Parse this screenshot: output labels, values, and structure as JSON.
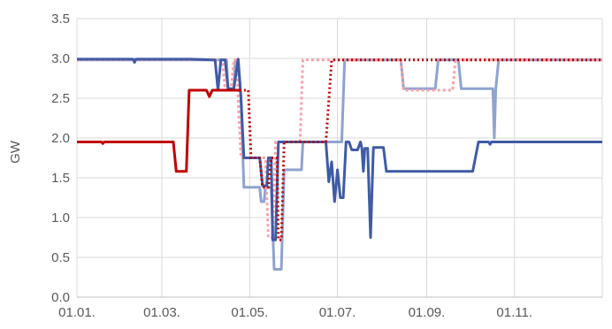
{
  "chart_data": {
    "type": "line",
    "ylabel": "GW",
    "ylim": [
      0,
      3.5
    ],
    "yticks": [
      "0.0",
      "0.5",
      "1.0",
      "1.5",
      "2.0",
      "2.5",
      "3.0",
      "3.5"
    ],
    "xlim": [
      1,
      366
    ],
    "xticks": [
      {
        "day": 1,
        "label": "01.01."
      },
      {
        "day": 60,
        "label": "01.03."
      },
      {
        "day": 121,
        "label": "01.05."
      },
      {
        "day": 182,
        "label": "01.07."
      },
      {
        "day": 244,
        "label": "01.09."
      },
      {
        "day": 305,
        "label": "01.11."
      }
    ],
    "grid": true,
    "series": [
      {
        "color": "#8FA3D0",
        "dash": "",
        "width": 3,
        "points": [
          [
            1,
            2.98
          ],
          [
            70,
            2.98
          ],
          [
            105,
            2.98
          ],
          [
            106,
            2.6
          ],
          [
            110,
            2.6
          ],
          [
            111,
            2.98
          ],
          [
            113,
            2.98
          ],
          [
            115,
            2.5
          ],
          [
            117,
            1.38
          ],
          [
            128,
            1.38
          ],
          [
            129,
            1.2
          ],
          [
            131,
            1.2
          ],
          [
            132,
            1.38
          ],
          [
            136,
            1.38
          ],
          [
            138,
            0.35
          ],
          [
            143,
            0.35
          ],
          [
            145,
            1.6
          ],
          [
            157,
            1.6
          ],
          [
            158,
            1.95
          ],
          [
            185,
            1.95
          ],
          [
            187,
            2.98
          ],
          [
            226,
            2.98
          ],
          [
            228,
            2.62
          ],
          [
            250,
            2.62
          ],
          [
            252,
            2.98
          ],
          [
            266,
            2.98
          ],
          [
            268,
            2.62
          ],
          [
            290,
            2.62
          ],
          [
            291,
            2.0
          ],
          [
            292,
            2.62
          ],
          [
            294,
            2.98
          ],
          [
            366,
            2.98
          ]
        ]
      },
      {
        "color": "#FAA0A8",
        "dash": "3 3",
        "width": 3,
        "points": [
          [
            1,
            2.98
          ],
          [
            102,
            2.98
          ],
          [
            104,
            2.6
          ],
          [
            108,
            2.6
          ],
          [
            110,
            2.98
          ],
          [
            112,
            2.98
          ],
          [
            113,
            2.5
          ],
          [
            115,
            1.75
          ],
          [
            132,
            1.75
          ],
          [
            134,
            0.75
          ],
          [
            137,
            0.75
          ],
          [
            139,
            1.95
          ],
          [
            156,
            1.95
          ],
          [
            158,
            2.98
          ],
          [
            226,
            2.98
          ],
          [
            228,
            2.6
          ],
          [
            262,
            2.6
          ],
          [
            264,
            2.98
          ],
          [
            366,
            2.98
          ]
        ]
      },
      {
        "color": "#3F5BA6",
        "dash": "",
        "width": 3,
        "points": [
          [
            1,
            2.99
          ],
          [
            40,
            2.99
          ],
          [
            41,
            2.95
          ],
          [
            42,
            2.99
          ],
          [
            80,
            2.99
          ],
          [
            95,
            2.98
          ],
          [
            97,
            2.98
          ],
          [
            99,
            2.6
          ],
          [
            101,
            2.98
          ],
          [
            104,
            2.98
          ],
          [
            106,
            2.62
          ],
          [
            110,
            2.62
          ],
          [
            113,
            2.99
          ],
          [
            115,
            2.5
          ],
          [
            117,
            1.75
          ],
          [
            128,
            1.75
          ],
          [
            130,
            1.4
          ],
          [
            133,
            1.4
          ],
          [
            134,
            1.75
          ],
          [
            136,
            1.75
          ],
          [
            137,
            0.72
          ],
          [
            139,
            0.72
          ],
          [
            141,
            1.95
          ],
          [
            174,
            1.95
          ],
          [
            176,
            1.45
          ],
          [
            178,
            1.7
          ],
          [
            180,
            1.2
          ],
          [
            182,
            1.6
          ],
          [
            184,
            1.25
          ],
          [
            186,
            1.25
          ],
          [
            188,
            1.95
          ],
          [
            190,
            1.95
          ],
          [
            192,
            1.85
          ],
          [
            196,
            1.85
          ],
          [
            198,
            1.95
          ],
          [
            199,
            1.87
          ],
          [
            200,
            1.58
          ],
          [
            201,
            1.87
          ],
          [
            203,
            1.87
          ],
          [
            205,
            0.75
          ],
          [
            207,
            1.88
          ],
          [
            214,
            1.88
          ],
          [
            216,
            1.58
          ],
          [
            276,
            1.58
          ],
          [
            280,
            1.95
          ],
          [
            287,
            1.95
          ],
          [
            288,
            1.92
          ],
          [
            289,
            1.95
          ],
          [
            366,
            1.95
          ]
        ]
      },
      {
        "color": "#C00000",
        "dash": "",
        "width": 3,
        "points": [
          [
            1,
            1.95
          ],
          [
            18,
            1.95
          ],
          [
            19,
            1.93
          ],
          [
            20,
            1.95
          ],
          [
            68,
            1.95
          ],
          [
            70,
            1.58
          ],
          [
            77,
            1.58
          ],
          [
            79,
            2.6
          ],
          [
            91,
            2.6
          ],
          [
            93,
            2.52
          ],
          [
            95,
            2.6
          ],
          [
            114,
            2.6
          ]
        ]
      },
      {
        "color": "#C00000",
        "dash": "2 3",
        "width": 3,
        "points": [
          [
            114,
            2.6
          ],
          [
            120,
            2.6
          ],
          [
            122,
            1.75
          ],
          [
            128,
            1.75
          ],
          [
            130,
            1.38
          ],
          [
            134,
            1.38
          ],
          [
            136,
            1.75
          ],
          [
            140,
            1.75
          ],
          [
            141,
            0.72
          ],
          [
            143,
            0.72
          ],
          [
            145,
            1.95
          ],
          [
            174,
            1.95
          ],
          [
            178,
            2.98
          ],
          [
            366,
            2.98
          ]
        ]
      }
    ]
  }
}
